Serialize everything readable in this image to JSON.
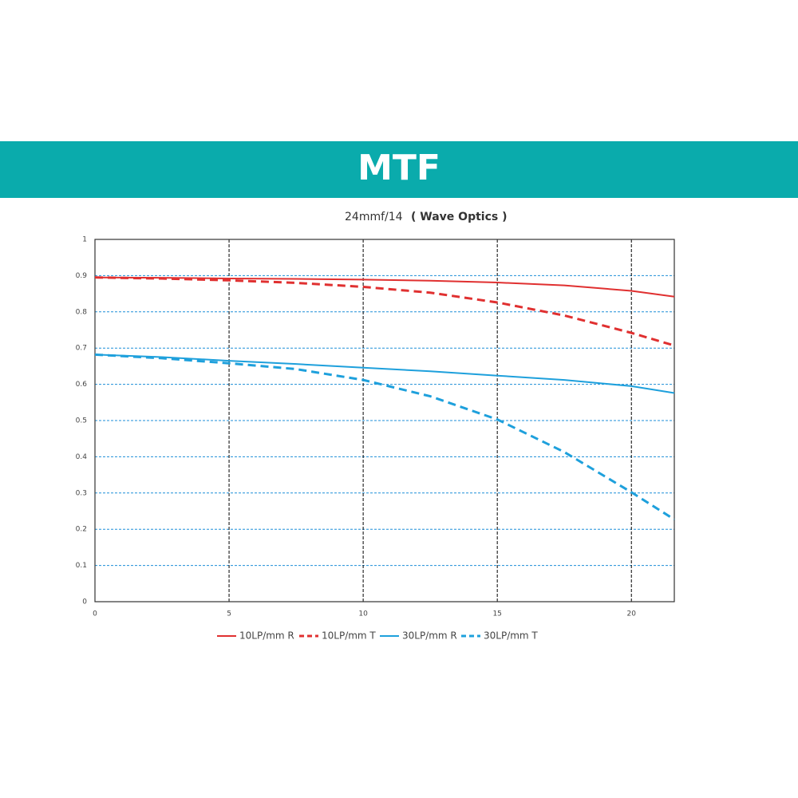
{
  "chart_data": {
    "type": "line",
    "title": "MTF",
    "subtitle": "24mmf/14",
    "subtitle_emphasis": "( Wave Optics )",
    "x": [
      0,
      2.5,
      5,
      7.5,
      10,
      12.5,
      15,
      17.5,
      20,
      21.6
    ],
    "series": [
      {
        "name": "10LP/mm R",
        "color": "#e03030",
        "dash": false,
        "values": [
          0.895,
          0.894,
          0.892,
          0.891,
          0.889,
          0.886,
          0.881,
          0.873,
          0.858,
          0.842
        ]
      },
      {
        "name": "10LP/mm T",
        "color": "#e03030",
        "dash": true,
        "values": [
          0.895,
          0.892,
          0.887,
          0.88,
          0.869,
          0.853,
          0.826,
          0.79,
          0.742,
          0.707
        ]
      },
      {
        "name": "30LP/mm R",
        "color": "#1ea0dc",
        "dash": false,
        "values": [
          0.682,
          0.675,
          0.665,
          0.656,
          0.646,
          0.636,
          0.624,
          0.612,
          0.595,
          0.576
        ]
      },
      {
        "name": "30LP/mm T",
        "color": "#1ea0dc",
        "dash": true,
        "values": [
          0.682,
          0.672,
          0.658,
          0.642,
          0.612,
          0.567,
          0.503,
          0.413,
          0.302,
          0.227
        ]
      }
    ],
    "xlim": [
      0,
      21.6
    ],
    "xticks": [
      0,
      5,
      10,
      15,
      20
    ],
    "ylim": [
      0,
      1
    ],
    "yticks": [
      0,
      0.1,
      0.2,
      0.3,
      0.4,
      0.5,
      0.6,
      0.7,
      0.8,
      0.9,
      1
    ],
    "grid": true,
    "legend": "bottom"
  }
}
